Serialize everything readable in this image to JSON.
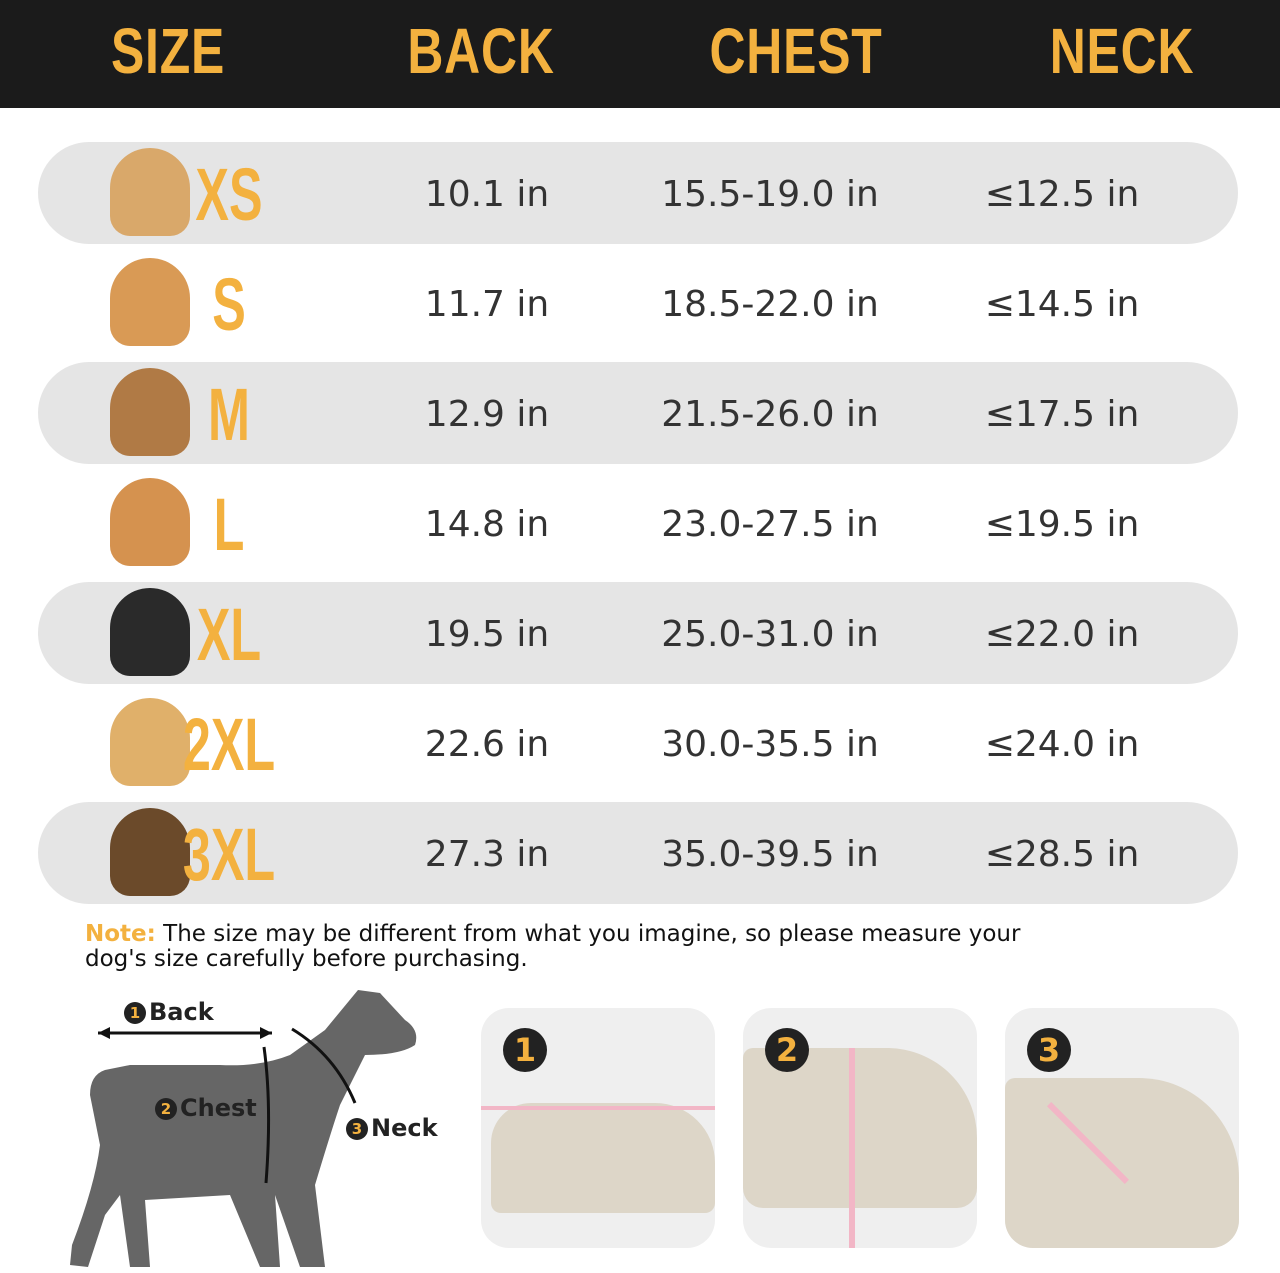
{
  "header": [
    "SIZE",
    "BACK",
    "CHEST",
    "NECK"
  ],
  "accent_color": "#f3b13f",
  "rows": [
    {
      "size": "XS",
      "back": "10.1 in",
      "chest": "15.5-19.0 in",
      "neck": "≤12.5 in",
      "dog": "chihuahua-photo"
    },
    {
      "size": "S",
      "back": "11.7 in",
      "chest": "18.5-22.0 in",
      "neck": "≤14.5 in",
      "dog": "maltipoo-photo"
    },
    {
      "size": "M",
      "back": "12.9 in",
      "chest": "21.5-26.0 in",
      "neck": "≤17.5 in",
      "dog": "poodle-photo"
    },
    {
      "size": "L",
      "back": "14.8 in",
      "chest": "23.0-27.5 in",
      "neck": "≤19.5 in",
      "dog": "corgi-photo"
    },
    {
      "size": "XL",
      "back": "19.5 in",
      "chest": "25.0-31.0 in",
      "neck": "≤22.0 in",
      "dog": "border-collie-photo"
    },
    {
      "size": "2XL",
      "back": "22.6 in",
      "chest": "30.0-35.5 in",
      "neck": "≤24.0 in",
      "dog": "golden-retriever-photo"
    },
    {
      "size": "3XL",
      "back": "27.3 in",
      "chest": "35.0-39.5 in",
      "neck": "≤28.5 in",
      "dog": "german-shepherd-photo"
    }
  ],
  "note": {
    "label": "Note:",
    "text": " The size may be different from what you imagine, so please measure your dog's size carefully before purchasing."
  },
  "diagram": {
    "back": "Back",
    "chest": "Chest",
    "neck": "Neck",
    "n1": "1",
    "n2": "2",
    "n3": "3"
  },
  "steps": [
    "1",
    "2",
    "3"
  ]
}
